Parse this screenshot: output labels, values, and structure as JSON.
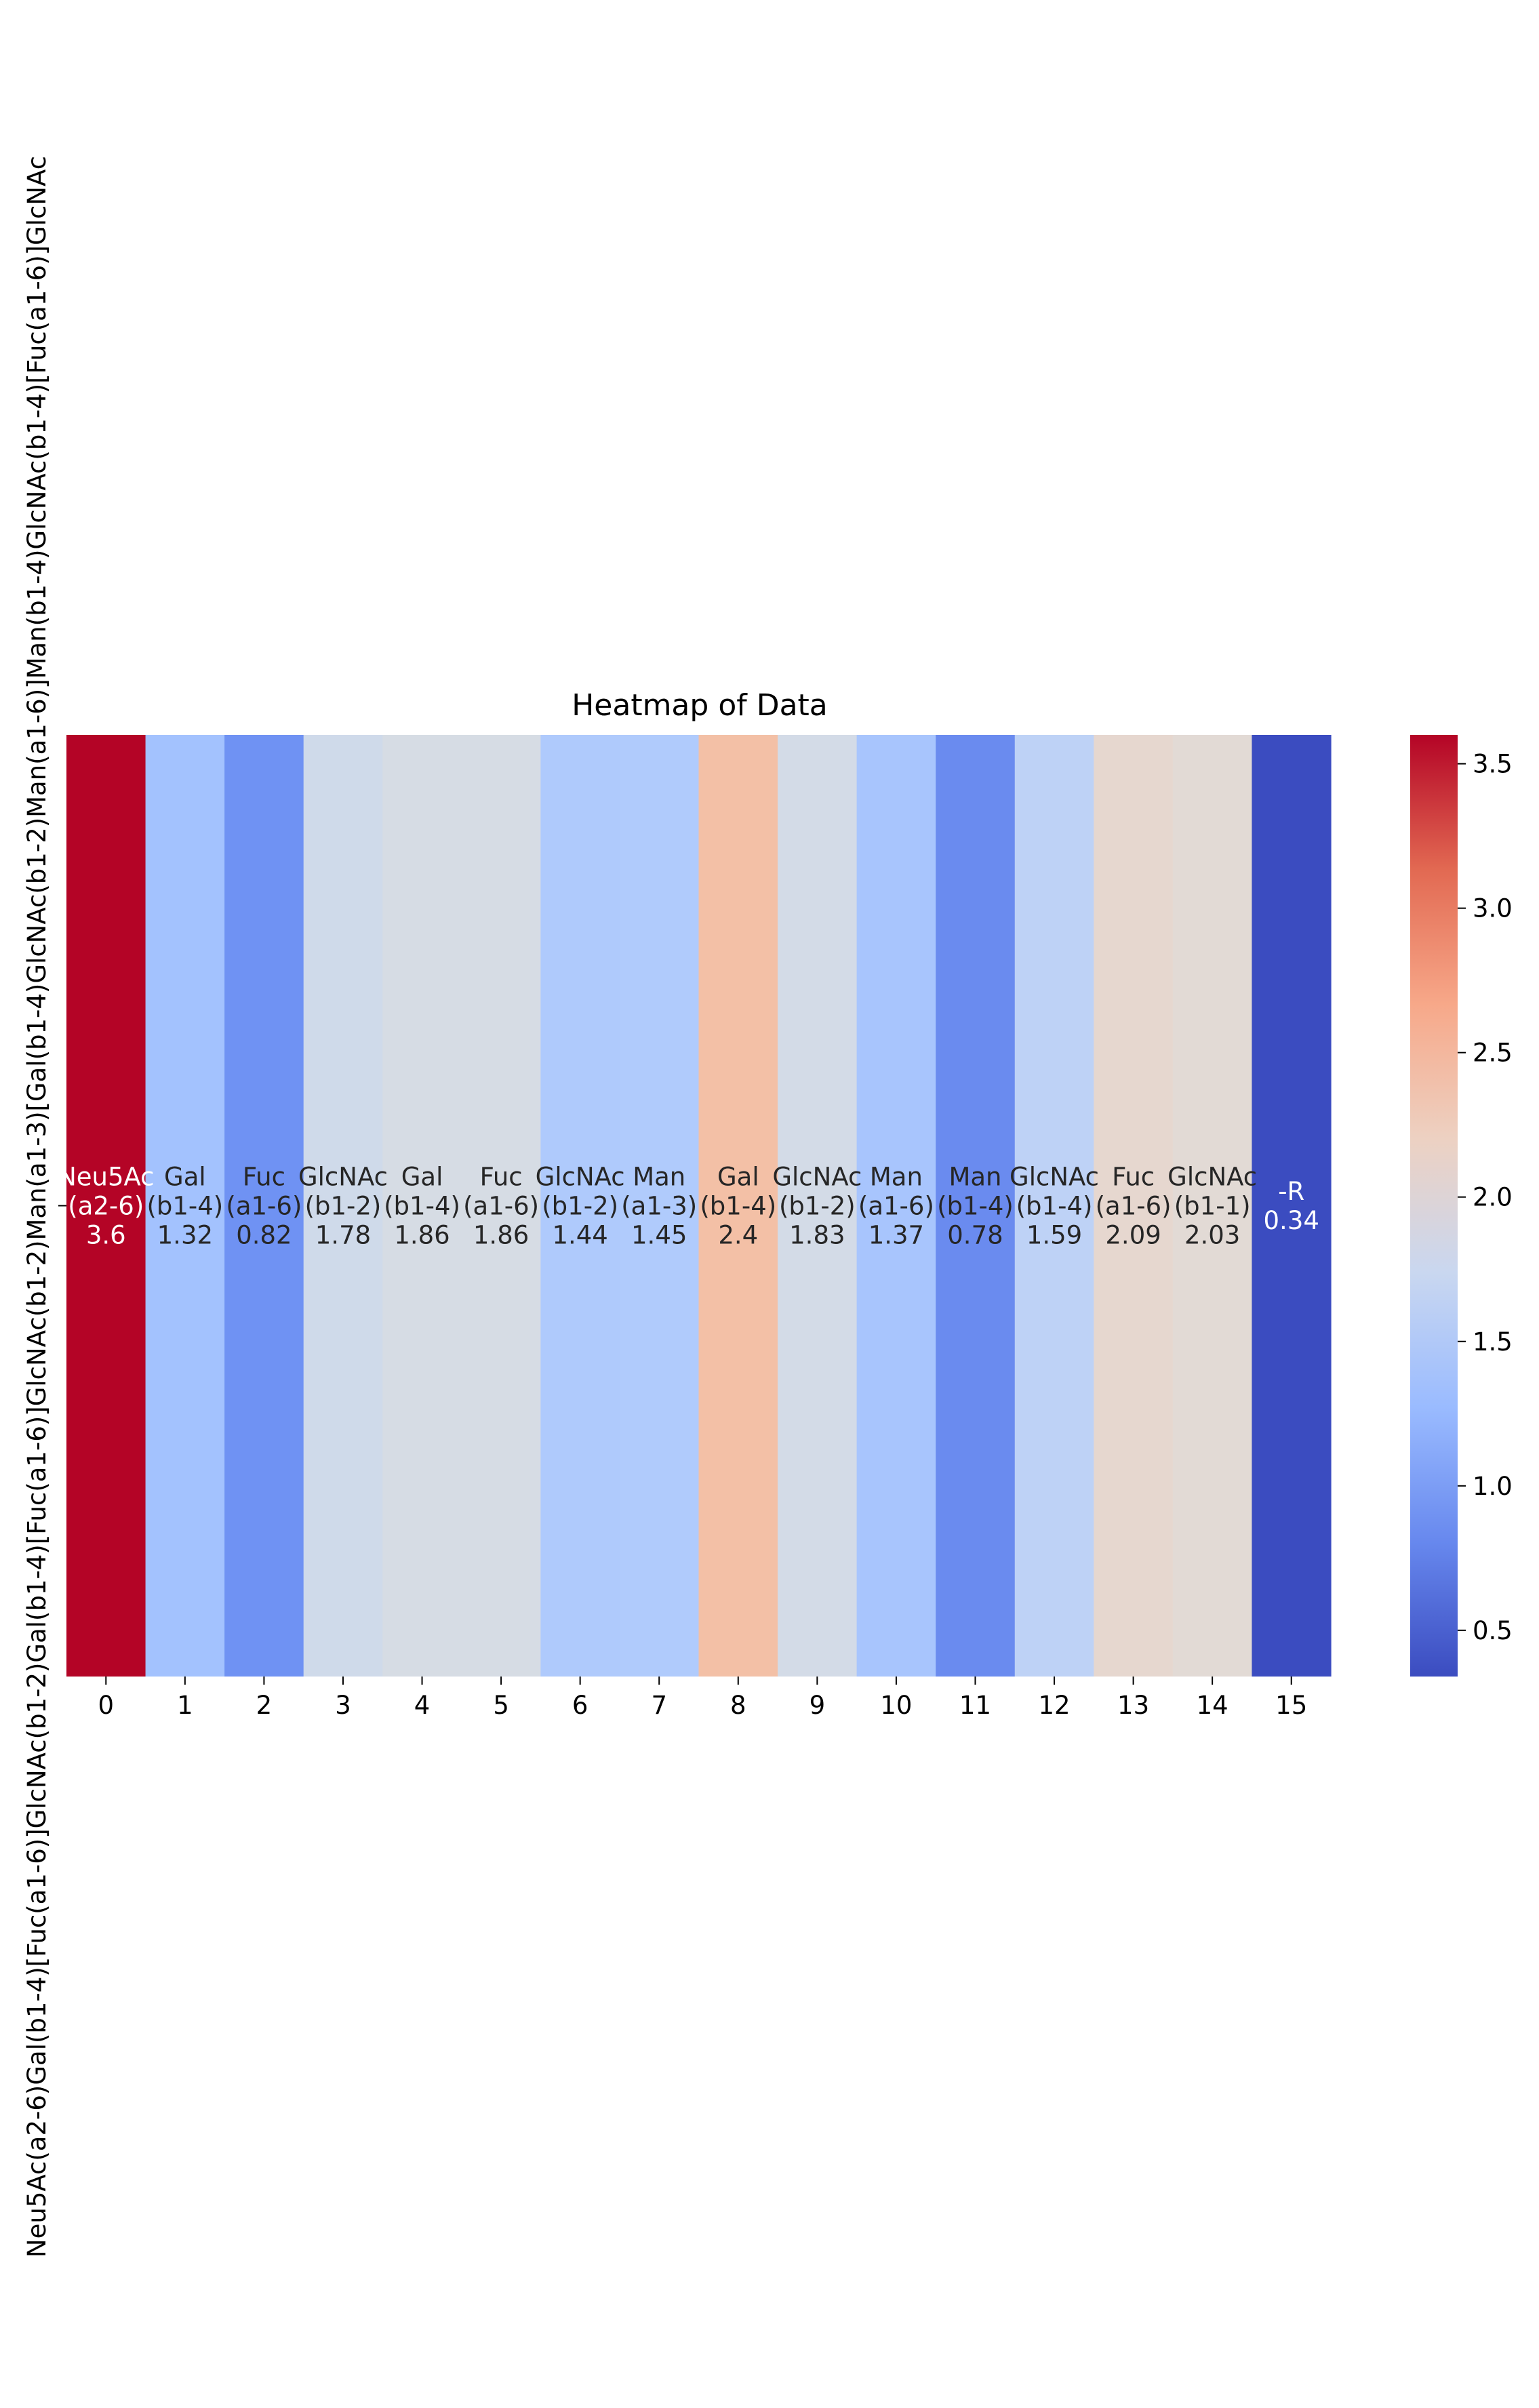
{
  "chart_data": {
    "type": "heatmap",
    "title": "Heatmap of Data",
    "xlabel": "",
    "ylabel": "",
    "row_label": "Neu5Ac(a2-6)Gal(b1-4)[Fuc(a1-6)]GlcNAc(b1-2)Gal(b1-4)[Fuc(a1-6)]GlcNAc(b1-2)Man(a1-3)[Gal(b1-4)GlcNAc(b1-2)Man(a1-6)]Man(b1-4)GlcNAc(b1-4)[Fuc(a1-6)]GlcNAc",
    "x_ticks": [
      "0",
      "1",
      "2",
      "3",
      "4",
      "5",
      "6",
      "7",
      "8",
      "9",
      "10",
      "11",
      "12",
      "13",
      "14",
      "15"
    ],
    "cells": [
      {
        "col": 0,
        "name": "Neu5Ac",
        "link": "(a2-6)",
        "value": 3.6,
        "display": "3.6",
        "color": "#b40426"
      },
      {
        "col": 1,
        "name": "Gal",
        "link": "(b1-4)",
        "value": 1.32,
        "display": "1.32",
        "color": "#a3c2fe"
      },
      {
        "col": 2,
        "name": "Fuc",
        "link": "(a1-6)",
        "value": 0.82,
        "display": "0.82",
        "color": "#6f92f3"
      },
      {
        "col": 3,
        "name": "GlcNAc",
        "link": "(b1-2)",
        "value": 1.78,
        "display": "1.78",
        "color": "#cfdaea"
      },
      {
        "col": 4,
        "name": "Gal",
        "link": "(b1-4)",
        "value": 1.86,
        "display": "1.86",
        "color": "#d6dce4"
      },
      {
        "col": 5,
        "name": "Fuc",
        "link": "(a1-6)",
        "value": 1.86,
        "display": "1.86",
        "color": "#d6dce4"
      },
      {
        "col": 6,
        "name": "GlcNAc",
        "link": "(b1-2)",
        "value": 1.44,
        "display": "1.44",
        "color": "#afcafc"
      },
      {
        "col": 7,
        "name": "Man",
        "link": "(a1-3)",
        "value": 1.45,
        "display": "1.45",
        "color": "#b0cbfc"
      },
      {
        "col": 8,
        "name": "Gal",
        "link": "(b1-4)",
        "value": 2.4,
        "display": "2.4",
        "color": "#f3c0a6"
      },
      {
        "col": 9,
        "name": "GlcNAc",
        "link": "(b1-2)",
        "value": 1.83,
        "display": "1.83",
        "color": "#d3dbe7"
      },
      {
        "col": 10,
        "name": "Man",
        "link": "(a1-6)",
        "value": 1.37,
        "display": "1.37",
        "color": "#a8c5fd"
      },
      {
        "col": 11,
        "name": "Man",
        "link": "(b1-4)",
        "value": 0.78,
        "display": "0.78",
        "color": "#6a8bef"
      },
      {
        "col": 12,
        "name": "GlcNAc",
        "link": "(b1-4)",
        "value": 1.59,
        "display": "1.59",
        "color": "#bed2f6"
      },
      {
        "col": 13,
        "name": "Fuc",
        "link": "(a1-6)",
        "value": 2.09,
        "display": "2.09",
        "color": "#e6d7cf"
      },
      {
        "col": 14,
        "name": "GlcNAc",
        "link": "(b1-1)",
        "value": 2.03,
        "display": "2.03",
        "color": "#e2dad5"
      },
      {
        "col": 15,
        "name": "-R",
        "link": "",
        "value": 0.34,
        "display": "0.34",
        "color": "#3b4cc0"
      }
    ],
    "colorbar": {
      "colormap": "coolwarm",
      "range": [
        0.34,
        3.6
      ],
      "ticks": [
        "0.5",
        "1.0",
        "1.5",
        "2.0",
        "2.5",
        "3.0",
        "3.5"
      ]
    },
    "grid": false,
    "legend": "none"
  }
}
